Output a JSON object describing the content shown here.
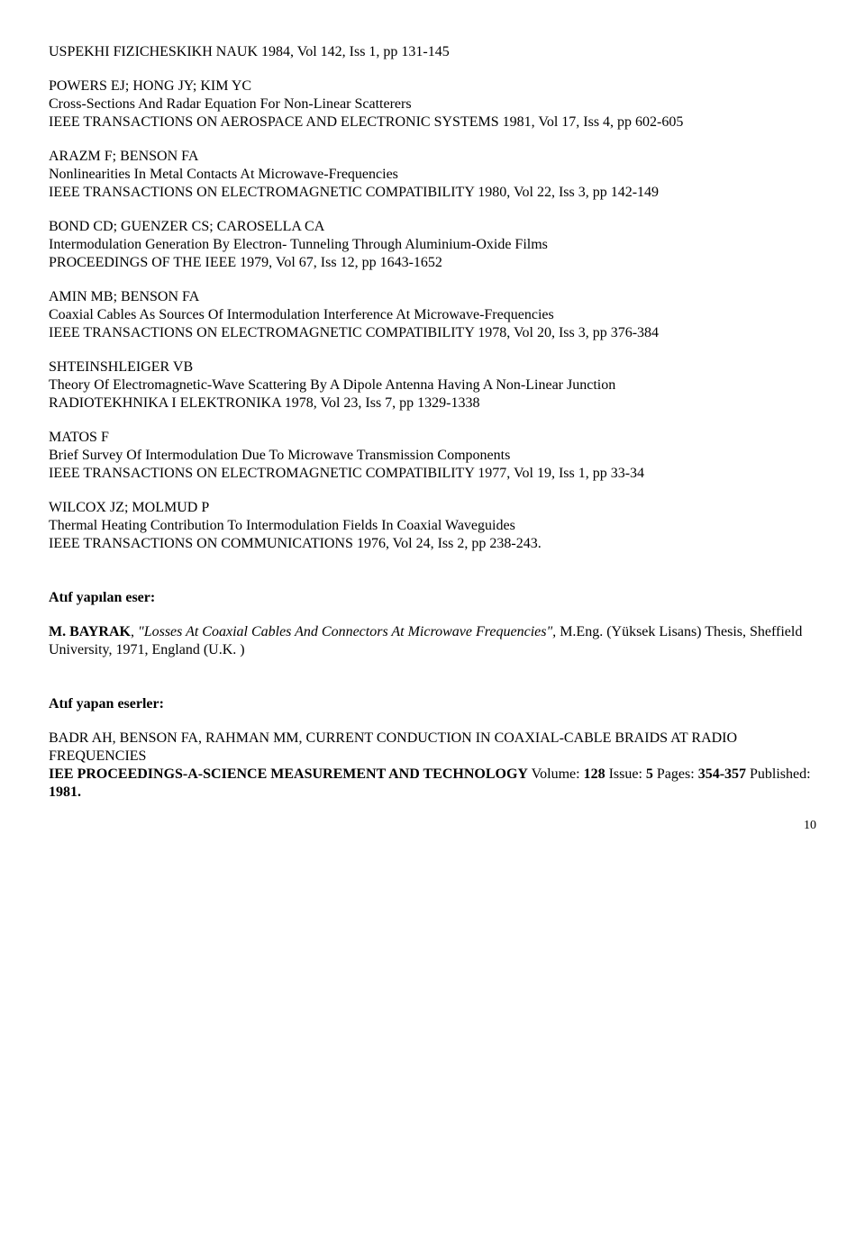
{
  "entries_top": [
    {
      "source": "USPEKHI FIZICHESKIKH NAUK 1984, Vol 142, Iss 1, pp 131-145"
    },
    {
      "authors": "POWERS EJ; HONG JY; KIM YC",
      "title": "Cross-Sections And Radar Equation For Non-Linear Scatterers",
      "source": "IEEE TRANSACTIONS ON AEROSPACE AND ELECTRONIC SYSTEMS 1981, Vol 17, Iss 4, pp 602-605"
    },
    {
      "authors": "ARAZM F; BENSON FA",
      "title": "Nonlinearities In Metal Contacts At Microwave-Frequencies",
      "source": "IEEE TRANSACTIONS ON ELECTROMAGNETIC COMPATIBILITY 1980, Vol 22, Iss 3, pp 142-149"
    },
    {
      "authors": "BOND CD; GUENZER CS; CAROSELLA CA",
      "title": "Intermodulation Generation By Electron- Tunneling Through Aluminium-Oxide Films",
      "source": "PROCEEDINGS OF THE IEEE 1979, Vol 67, Iss 12, pp 1643-1652"
    },
    {
      "authors": "AMIN MB; BENSON FA",
      "title": "Coaxial Cables As Sources Of Intermodulation Interference At Microwave-Frequencies",
      "source": "IEEE TRANSACTIONS ON ELECTROMAGNETIC COMPATIBILITY 1978, Vol 20, Iss 3, pp 376-384"
    },
    {
      "authors": "SHTEINSHLEIGER VB",
      "title": "Theory Of Electromagnetic-Wave Scattering By A Dipole Antenna Having A Non-Linear Junction",
      "source": "RADIOTEKHNIKA I ELEKTRONIKA 1978, Vol 23, Iss 7, pp 1329-1338"
    },
    {
      "authors": "MATOS F",
      "title": "Brief Survey Of Intermodulation Due To Microwave Transmission Components",
      "source": "IEEE TRANSACTIONS ON ELECTROMAGNETIC COMPATIBILITY 1977, Vol 19, Iss 1, pp 33-34"
    },
    {
      "authors": "WILCOX JZ; MOLMUD P",
      "title": "Thermal Heating Contribution To Intermodulation Fields In Coaxial Waveguides",
      "source": "IEEE TRANSACTIONS ON COMMUNICATIONS 1976, Vol 24, Iss 2, pp 238-243."
    }
  ],
  "section1": {
    "heading": "Atıf yapılan eser:",
    "author_bold": "M. BAYRAK",
    "sep": ", ",
    "quote_open": "\"",
    "title_italic": "Losses At Coaxial Cables And Connectors At Microwave Frequencies\", ",
    "tail": "M.Eng. (Yüksek Lisans) Thesis, Sheffield University, 1971, England (U.K. )"
  },
  "section2": {
    "heading": "Atıf yapan eserler:",
    "line1_plain": "BADR AH, BENSON FA, RAHMAN MM, ",
    "line1_caps": "CURRENT CONDUCTION IN COAXIAL-CABLE BRAIDS AT RADIO FREQUENCIES",
    "line2_bold": " IEE PROCEEDINGS-A-SCIENCE MEASUREMENT AND TECHNOLOGY",
    "vol_label": "  Volume: ",
    "vol": "128",
    "iss_label": "  Issue: ",
    "iss": "5",
    "pages_label": "  Pages: ",
    "pages": "354-357",
    "pub_label": "   Published: ",
    "pub": "1981."
  },
  "pagenum": "10"
}
